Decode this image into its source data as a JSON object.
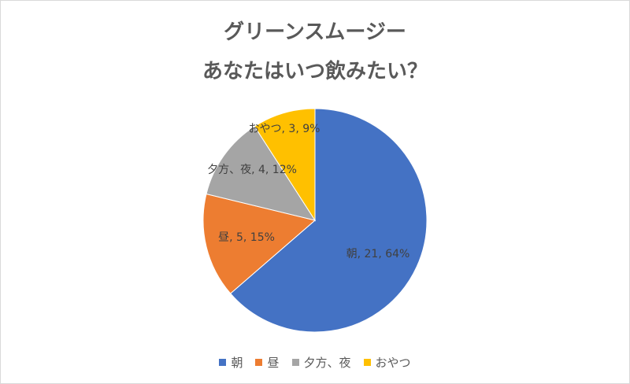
{
  "chart_data": {
    "type": "pie",
    "title_line1": "グリーンスムージー",
    "title_line2": "あなたはいつ飲みたい？",
    "slices": [
      {
        "name": "朝",
        "value": 21,
        "percent": "64%",
        "color": "#4472C4",
        "label": "朝, 21, 64%"
      },
      {
        "name": "昼",
        "value": 5,
        "percent": "15%",
        "color": "#ED7D31",
        "label": "昼, 5, 15%"
      },
      {
        "name": "夕方、夜",
        "value": 4,
        "percent": "12%",
        "color": "#A5A5A5",
        "label": "夕方、夜, 4, 12%"
      },
      {
        "name": "おやつ",
        "value": 3,
        "percent": "9%",
        "color": "#FFC000",
        "label": "おやつ, 3, 9%"
      }
    ],
    "legend_position": "bottom"
  }
}
